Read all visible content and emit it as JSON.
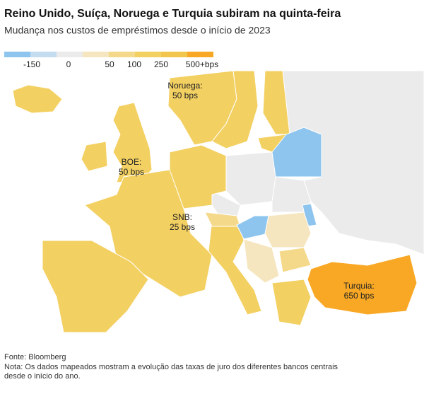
{
  "header": {
    "title": "Reino Unido, Suíça, Noruega e Turquia subiram na quinta-feira",
    "subtitle": "Mudança nos custos de empréstimos desde o início de 2023"
  },
  "legend": {
    "colors": [
      "#8ec5ee",
      "#c3dcf0",
      "#ebebeb",
      "#f5e6bf",
      "#f5d98a",
      "#f3d062",
      "#f2c64c",
      "#f8a824"
    ],
    "labels": [
      "-150",
      "0",
      "50",
      "100",
      "250",
      "500+bps"
    ]
  },
  "annotations": [
    {
      "lines": [
        "Noruega:",
        "50 bps"
      ]
    },
    {
      "lines": [
        "BOE:",
        "50 bps"
      ]
    },
    {
      "lines": [
        "SNB:",
        "25 bps"
      ]
    },
    {
      "lines": [
        "Turquia:",
        "650 bps"
      ]
    }
  ],
  "footer": {
    "source": "Fonte: Bloomberg",
    "note": [
      "Nota: Os dados mapeados mostram a evolução das taxas de juro dos diferentes bancos centrais",
      "desde o início do ano."
    ]
  }
}
